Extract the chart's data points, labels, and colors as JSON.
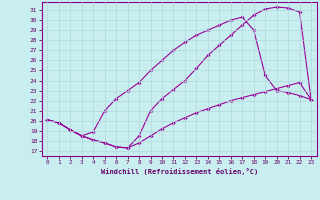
{
  "xlabel": "Windchill (Refroidissement éolien,°C)",
  "xlim": [
    -0.5,
    23.5
  ],
  "ylim": [
    16.5,
    31.8
  ],
  "yticks": [
    17,
    18,
    19,
    20,
    21,
    22,
    23,
    24,
    25,
    26,
    27,
    28,
    29,
    30,
    31
  ],
  "xticks": [
    0,
    1,
    2,
    3,
    4,
    5,
    6,
    7,
    8,
    9,
    10,
    11,
    12,
    13,
    14,
    15,
    16,
    17,
    18,
    19,
    20,
    21,
    22,
    23
  ],
  "line_color": "#990099",
  "bg_color": "#c8eef0",
  "grid_color": "#b0d8da",
  "line1_x": [
    0,
    1,
    2,
    3,
    4,
    5,
    6,
    7,
    8,
    9,
    10,
    11,
    12,
    13,
    14,
    15,
    16,
    17,
    18,
    19,
    20,
    21,
    22,
    23
  ],
  "line1_y": [
    20.1,
    19.8,
    19.1,
    18.5,
    18.1,
    17.8,
    17.4,
    17.3,
    17.8,
    18.5,
    19.2,
    19.8,
    20.3,
    20.8,
    21.2,
    21.6,
    22.0,
    22.3,
    22.6,
    22.9,
    23.2,
    23.5,
    23.8,
    22.1
  ],
  "line2_x": [
    0,
    1,
    2,
    3,
    4,
    5,
    6,
    7,
    8,
    9,
    10,
    11,
    12,
    13,
    14,
    15,
    16,
    17,
    18,
    19,
    20,
    21,
    22,
    23
  ],
  "line2_y": [
    20.1,
    19.8,
    19.1,
    18.5,
    18.9,
    21.0,
    22.2,
    23.0,
    23.8,
    25.0,
    26.0,
    27.0,
    27.8,
    28.5,
    29.0,
    29.5,
    30.0,
    30.3,
    29.0,
    24.5,
    23.0,
    22.8,
    22.5,
    22.1
  ],
  "line3_x": [
    0,
    1,
    2,
    3,
    4,
    5,
    6,
    7,
    8,
    9,
    10,
    11,
    12,
    13,
    14,
    15,
    16,
    17,
    18,
    19,
    20,
    21,
    22,
    23
  ],
  "line3_y": [
    20.1,
    19.8,
    19.1,
    18.5,
    18.1,
    17.8,
    17.4,
    17.3,
    18.5,
    21.0,
    22.2,
    23.1,
    24.0,
    25.2,
    26.5,
    27.5,
    28.5,
    29.5,
    30.5,
    31.1,
    31.3,
    31.2,
    30.8,
    22.1
  ]
}
